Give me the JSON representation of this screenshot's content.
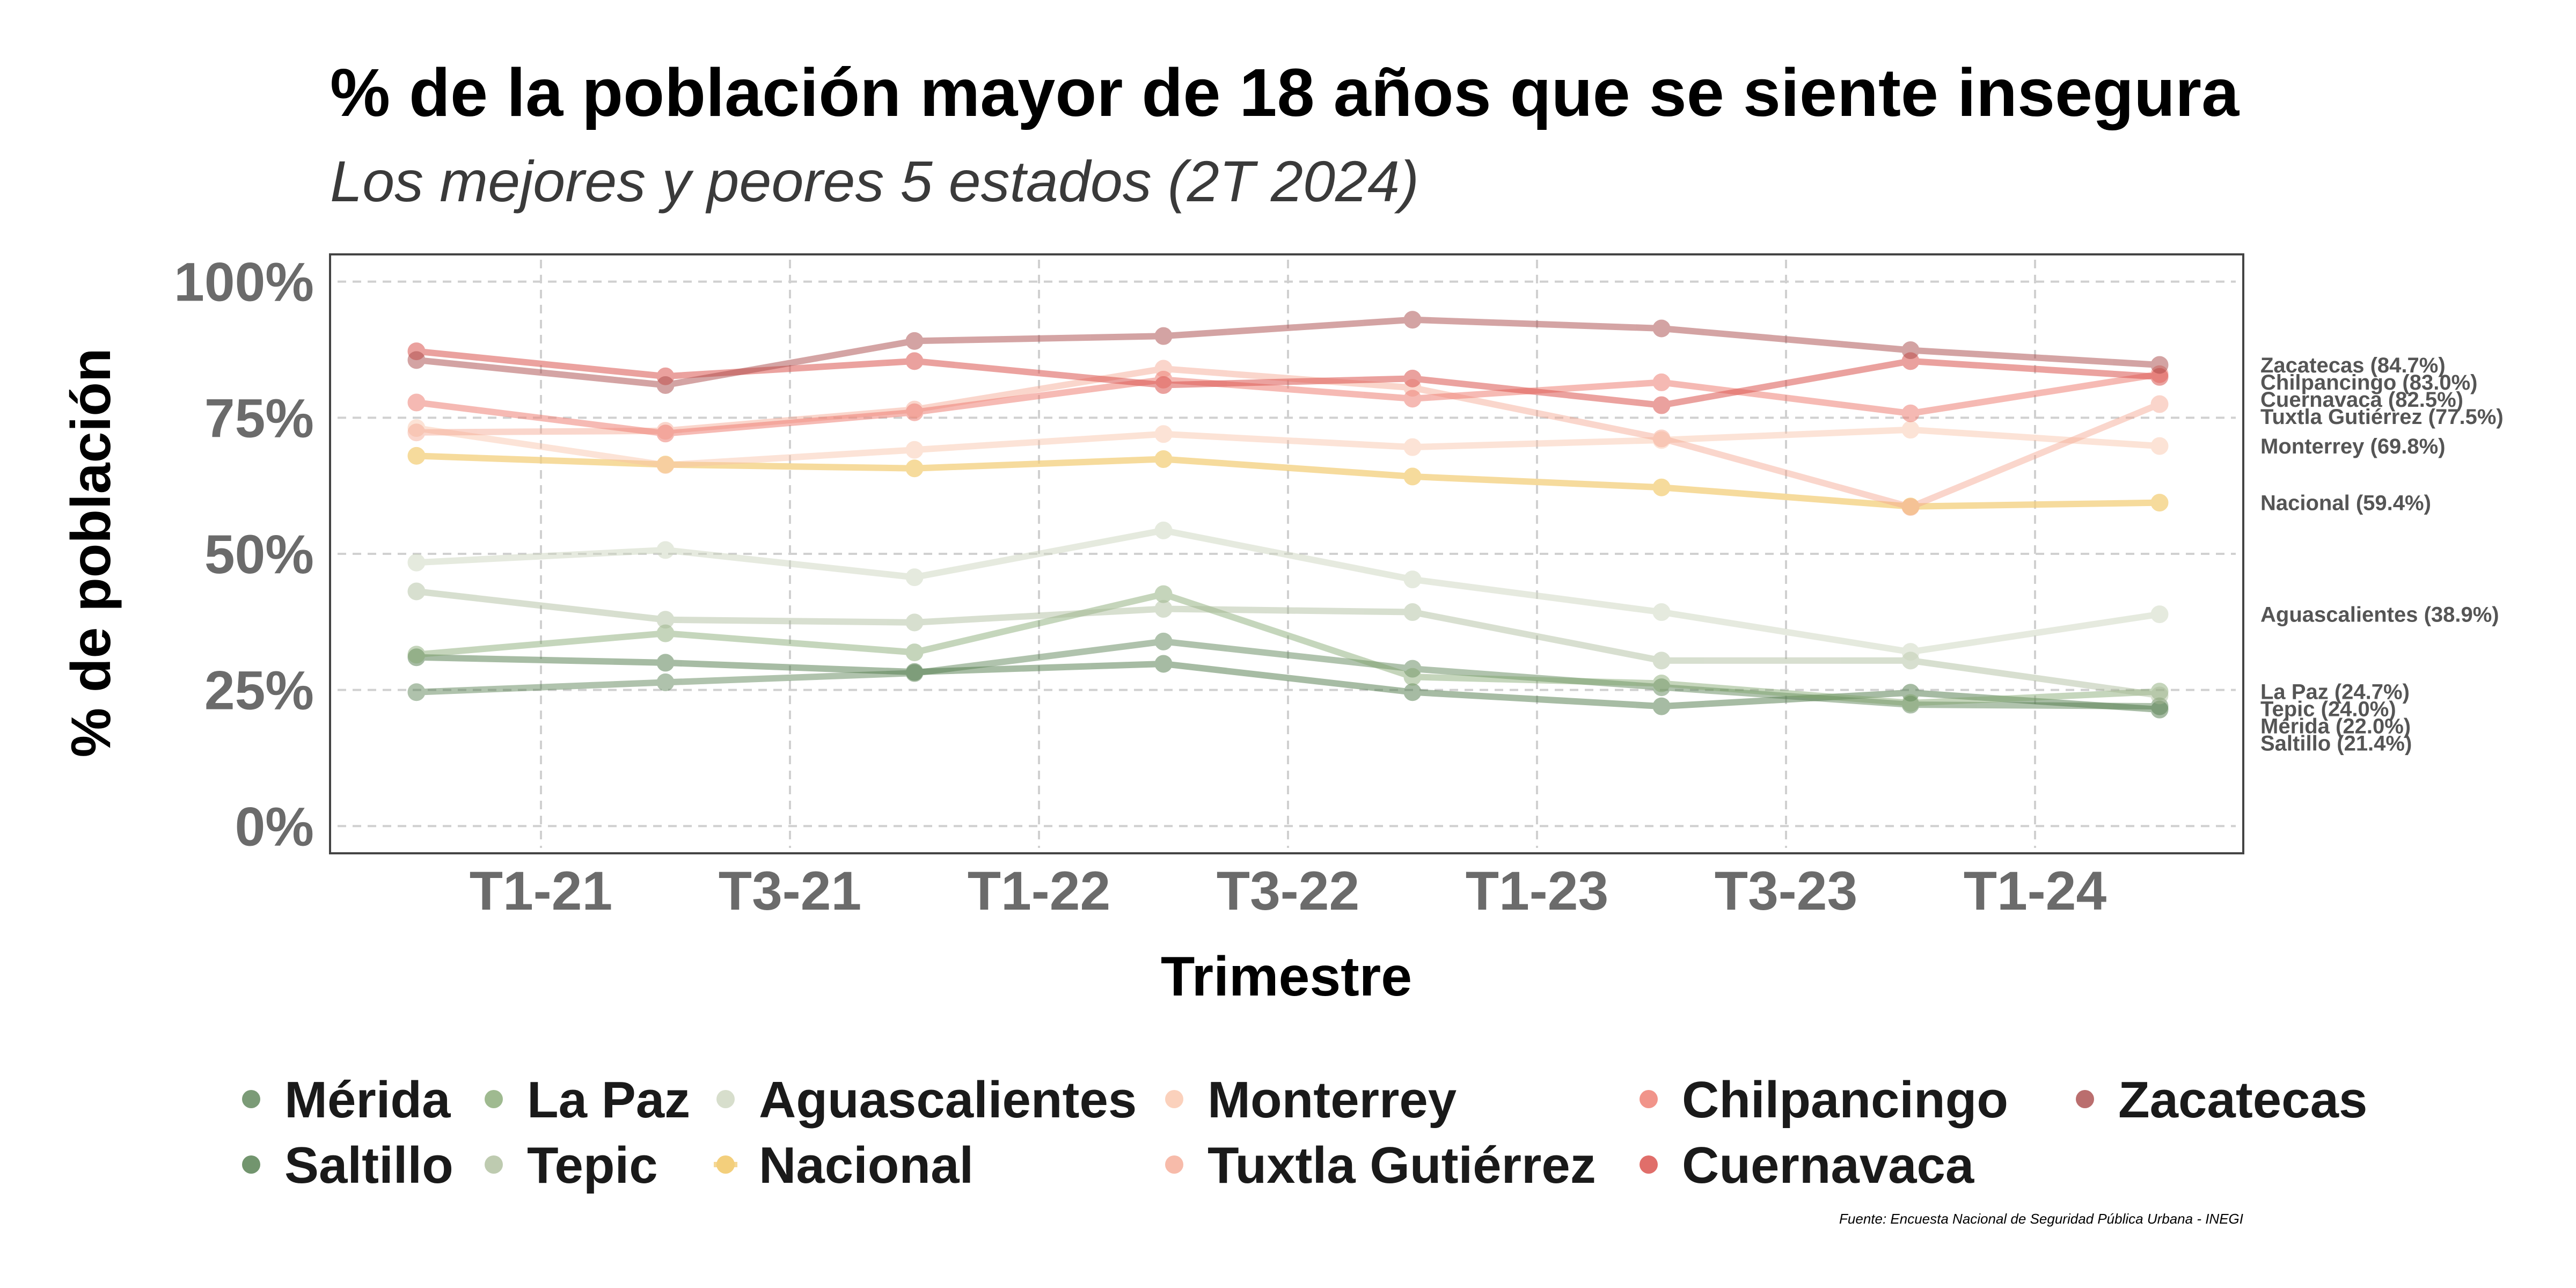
{
  "chart_data": {
    "type": "line",
    "title": "% de la población mayor de 18 años que se siente insegura",
    "subtitle": "Los mejores y peores 5 estados (2T 2024)",
    "xlabel": "Trimestre",
    "ylabel": "% de población",
    "x": [
      "T4-20",
      "T2-21",
      "T4-21",
      "T2-22",
      "T4-22",
      "T2-23",
      "T4-23",
      "T2-24"
    ],
    "x_tick_labels": [
      "T1-21",
      "T3-21",
      "T1-22",
      "T3-22",
      "T1-23",
      "T3-23",
      "T1-24"
    ],
    "x_tick_values": [
      "T1-21",
      "T3-21",
      "T1-22",
      "T3-22",
      "T1-23",
      "T3-23",
      "T1-24"
    ],
    "y_tick_labels": [
      "0%",
      "25%",
      "50%",
      "75%",
      "100%"
    ],
    "y_tick_values": [
      0,
      25,
      50,
      75,
      100
    ],
    "ylim": [
      -5,
      105
    ],
    "grid": true,
    "legend_position": "bottom",
    "series": [
      {
        "name": "Mérida",
        "color": "#4f7a4a",
        "opacity": 0.45,
        "values": [
          24.6,
          26.4,
          28.1,
          33.9,
          28.9,
          25.5,
          22.3,
          22.0
        ],
        "end_label": "Mérida (22.0%)"
      },
      {
        "name": "Saltillo",
        "color": "#4f7a4a",
        "opacity": 0.5,
        "values": [
          31.0,
          30.0,
          28.3,
          29.8,
          24.6,
          22.0,
          24.5,
          21.4
        ],
        "end_label": "Saltillo (21.4%)"
      },
      {
        "name": "La Paz",
        "color": "#7fa36b",
        "opacity": 0.45,
        "values": [
          31.5,
          35.4,
          31.9,
          42.6,
          27.4,
          26.2,
          22.6,
          24.7
        ],
        "end_label": "La Paz (24.7%)"
      },
      {
        "name": "Tepic",
        "color": "#a8b996",
        "opacity": 0.45,
        "values": [
          43.1,
          37.9,
          37.4,
          39.9,
          39.3,
          30.4,
          30.4,
          24.0
        ],
        "end_label": "Tepic (24.0%)"
      },
      {
        "name": "Aguascalientes",
        "color": "#cdd6bf",
        "opacity": 0.5,
        "values": [
          48.4,
          50.7,
          45.7,
          54.3,
          45.3,
          39.3,
          32.0,
          38.9
        ],
        "end_label": "Aguascalientes (38.9%)"
      },
      {
        "name": "Nacional",
        "color": "#f3cf7c",
        "opacity": 0.75,
        "values": [
          68.0,
          66.4,
          65.7,
          67.4,
          64.2,
          62.2,
          58.7,
          59.4
        ],
        "end_label": "Nacional (59.4%)"
      },
      {
        "name": "Monterrey",
        "color": "#f9c2a6",
        "opacity": 0.45,
        "values": [
          73.1,
          66.3,
          69.1,
          72.0,
          69.6,
          70.9,
          72.8,
          69.8
        ],
        "end_label": "Monterrey (69.8%)"
      },
      {
        "name": "Tuxtla Gutiérrez",
        "color": "#f4a48e",
        "opacity": 0.45,
        "values": [
          72.3,
          72.6,
          76.5,
          84.0,
          80.5,
          71.2,
          58.6,
          77.5
        ],
        "end_label": "Tuxtla Gutiérrez (77.5%)"
      },
      {
        "name": "Chilpancingo",
        "color": "#ee8176",
        "opacity": 0.55,
        "values": [
          77.8,
          72.1,
          76.0,
          82.0,
          78.5,
          81.5,
          75.8,
          83.0
        ],
        "end_label": "Chilpancingo (83.0%)"
      },
      {
        "name": "Cuernavaca",
        "color": "#da5550",
        "opacity": 0.55,
        "values": [
          87.2,
          82.6,
          85.4,
          81.0,
          82.2,
          77.3,
          85.4,
          82.5
        ],
        "end_label": "Cuernavaca (82.5%)"
      },
      {
        "name": "Zacatecas",
        "color": "#a94a4a",
        "opacity": 0.5,
        "values": [
          85.6,
          81.0,
          89.1,
          90.0,
          93.0,
          91.4,
          87.4,
          84.7
        ],
        "end_label": "Zacatecas (84.7%)"
      }
    ],
    "legend": {
      "rows": [
        [
          "Mérida",
          "La Paz",
          "Aguascalientes",
          "Monterrey",
          "Chilpancingo",
          "Zacatecas"
        ],
        [
          "Saltillo",
          "Tepic",
          "Nacional",
          "Tuxtla Gutiérrez",
          "Cuernavaca"
        ]
      ]
    },
    "source": "Fuente: Encuesta Nacional de Seguridad Pública Urbana - INEGI"
  }
}
